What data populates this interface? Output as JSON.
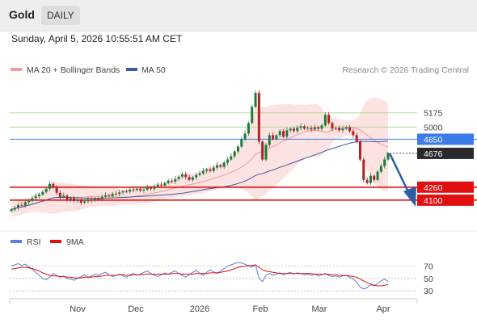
{
  "header": {
    "symbol": "Gold",
    "timeframe": "DAILY",
    "timestamp": "Sunday, April 5, 2026 10:55:51 AM CET"
  },
  "colors": {
    "bollinger": "#f29a9a",
    "bb_fill": "#fde2e2",
    "ma50": "#3a5ba8",
    "candle_up": "#1e7a3a",
    "candle_down": "#b22222",
    "blue_level": "#3d7be8",
    "red_level": "#e01010",
    "green_level": "#b8d89a",
    "last_price": "#2a2a2a",
    "rsi": "#5b7fd6",
    "rsi_ma": "#e01010",
    "arrow": "#2b5ea8"
  },
  "chart_data": [
    {
      "type": "candlestick",
      "legend": [
        {
          "label": "MA 20 + Bollinger Bands",
          "color": "#f29a9a"
        },
        {
          "label": "MA 50",
          "color": "#3a5ba8"
        }
      ],
      "credit": "Research © 2026 Trading Central",
      "x_ticks": [
        "Nov",
        "Dec",
        "2026",
        "Feb",
        "Mar",
        "Apr"
      ],
      "ylim": [
        3860,
        5590
      ],
      "levels": [
        {
          "label": "5175",
          "value": 5175,
          "style": "green"
        },
        {
          "label": "5000",
          "value": 5000,
          "style": "green"
        },
        {
          "label": "4850",
          "value": 4850,
          "style": "blue"
        },
        {
          "label": "4676",
          "value": 4676,
          "style": "last"
        },
        {
          "label": "4260",
          "value": 4260,
          "style": "red"
        },
        {
          "label": "4100",
          "value": 4100,
          "style": "red"
        }
      ],
      "closes": [
        3985,
        4005,
        4040,
        4030,
        4075,
        4090,
        4125,
        4150,
        4170,
        4200,
        4240,
        4300,
        4260,
        4190,
        4140,
        4155,
        4110,
        4125,
        4090,
        4105,
        4070,
        4085,
        4110,
        4095,
        4120,
        4115,
        4140,
        4160,
        4150,
        4180,
        4175,
        4195,
        4210,
        4205,
        4230,
        4225,
        4240,
        4220,
        4230,
        4255,
        4240,
        4270,
        4290,
        4280,
        4310,
        4340,
        4330,
        4360,
        4390,
        4420,
        4385,
        4350,
        4380,
        4410,
        4430,
        4460,
        4480,
        4460,
        4500,
        4530,
        4510,
        4560,
        4600,
        4640,
        4700,
        4760,
        4850,
        4920,
        5050,
        5250,
        5420,
        4820,
        4600,
        4780,
        4900,
        4850,
        4900,
        4950,
        4880,
        4960,
        4980,
        4950,
        4990,
        5010,
        4980,
        4990,
        4970,
        5000,
        4980,
        5020,
        5150,
        5050,
        4980,
        4990,
        4960,
        4980,
        5000,
        4950,
        4900,
        4820,
        4600,
        4350,
        4310,
        4400,
        4350,
        4450,
        4520,
        4600,
        4676
      ]
    },
    {
      "type": "line",
      "legend": [
        {
          "label": "RSI",
          "color": "#5b7fd6"
        },
        {
          "label": "9MA",
          "color": "#e01010"
        }
      ],
      "ylim": [
        25,
        85
      ],
      "y_ticks": [
        70,
        50,
        30
      ],
      "series": [
        {
          "name": "RSI",
          "values": [
            70,
            72,
            74,
            71,
            73,
            69,
            65,
            60,
            55,
            50,
            48,
            52,
            58,
            55,
            52,
            54,
            50,
            49,
            47,
            50,
            53,
            56,
            52,
            54,
            57,
            55,
            58,
            60,
            56,
            53,
            55,
            57,
            54,
            52,
            56,
            58,
            55,
            57,
            60,
            62,
            58,
            55,
            53,
            56,
            59,
            57,
            60,
            62,
            58,
            55,
            52,
            56,
            60,
            63,
            58,
            55,
            60,
            64,
            61,
            58,
            62,
            66,
            70,
            72,
            74,
            76,
            75,
            73,
            70,
            68,
            72,
            50,
            45,
            55,
            58,
            55,
            57,
            59,
            56,
            58,
            60,
            57,
            59,
            58,
            56,
            57,
            55,
            57,
            54,
            56,
            58,
            55,
            53,
            54,
            52,
            54,
            55,
            52,
            49,
            44,
            36,
            33,
            35,
            40,
            38,
            42,
            46,
            49,
            45
          ]
        },
        {
          "name": "9MA",
          "values": [
            65,
            66,
            67,
            68,
            68,
            67,
            66,
            64,
            62,
            59,
            57,
            55,
            54,
            54,
            53,
            53,
            52,
            52,
            51,
            51,
            51,
            52,
            52,
            52,
            53,
            53,
            54,
            55,
            55,
            55,
            55,
            56,
            56,
            55,
            55,
            56,
            56,
            56,
            57,
            57,
            57,
            57,
            57,
            57,
            57,
            57,
            58,
            58,
            58,
            57,
            57,
            57,
            57,
            58,
            58,
            58,
            58,
            59,
            59,
            59,
            60,
            61,
            62,
            64,
            66,
            68,
            69,
            70,
            71,
            71,
            72,
            68,
            64,
            62,
            61,
            60,
            59,
            58,
            58,
            58,
            58,
            58,
            58,
            58,
            58,
            58,
            58,
            57,
            57,
            57,
            57,
            57,
            56,
            56,
            55,
            55,
            55,
            54,
            53,
            52,
            49,
            46,
            43,
            41,
            39,
            38,
            38,
            39,
            40
          ]
        }
      ]
    }
  ]
}
